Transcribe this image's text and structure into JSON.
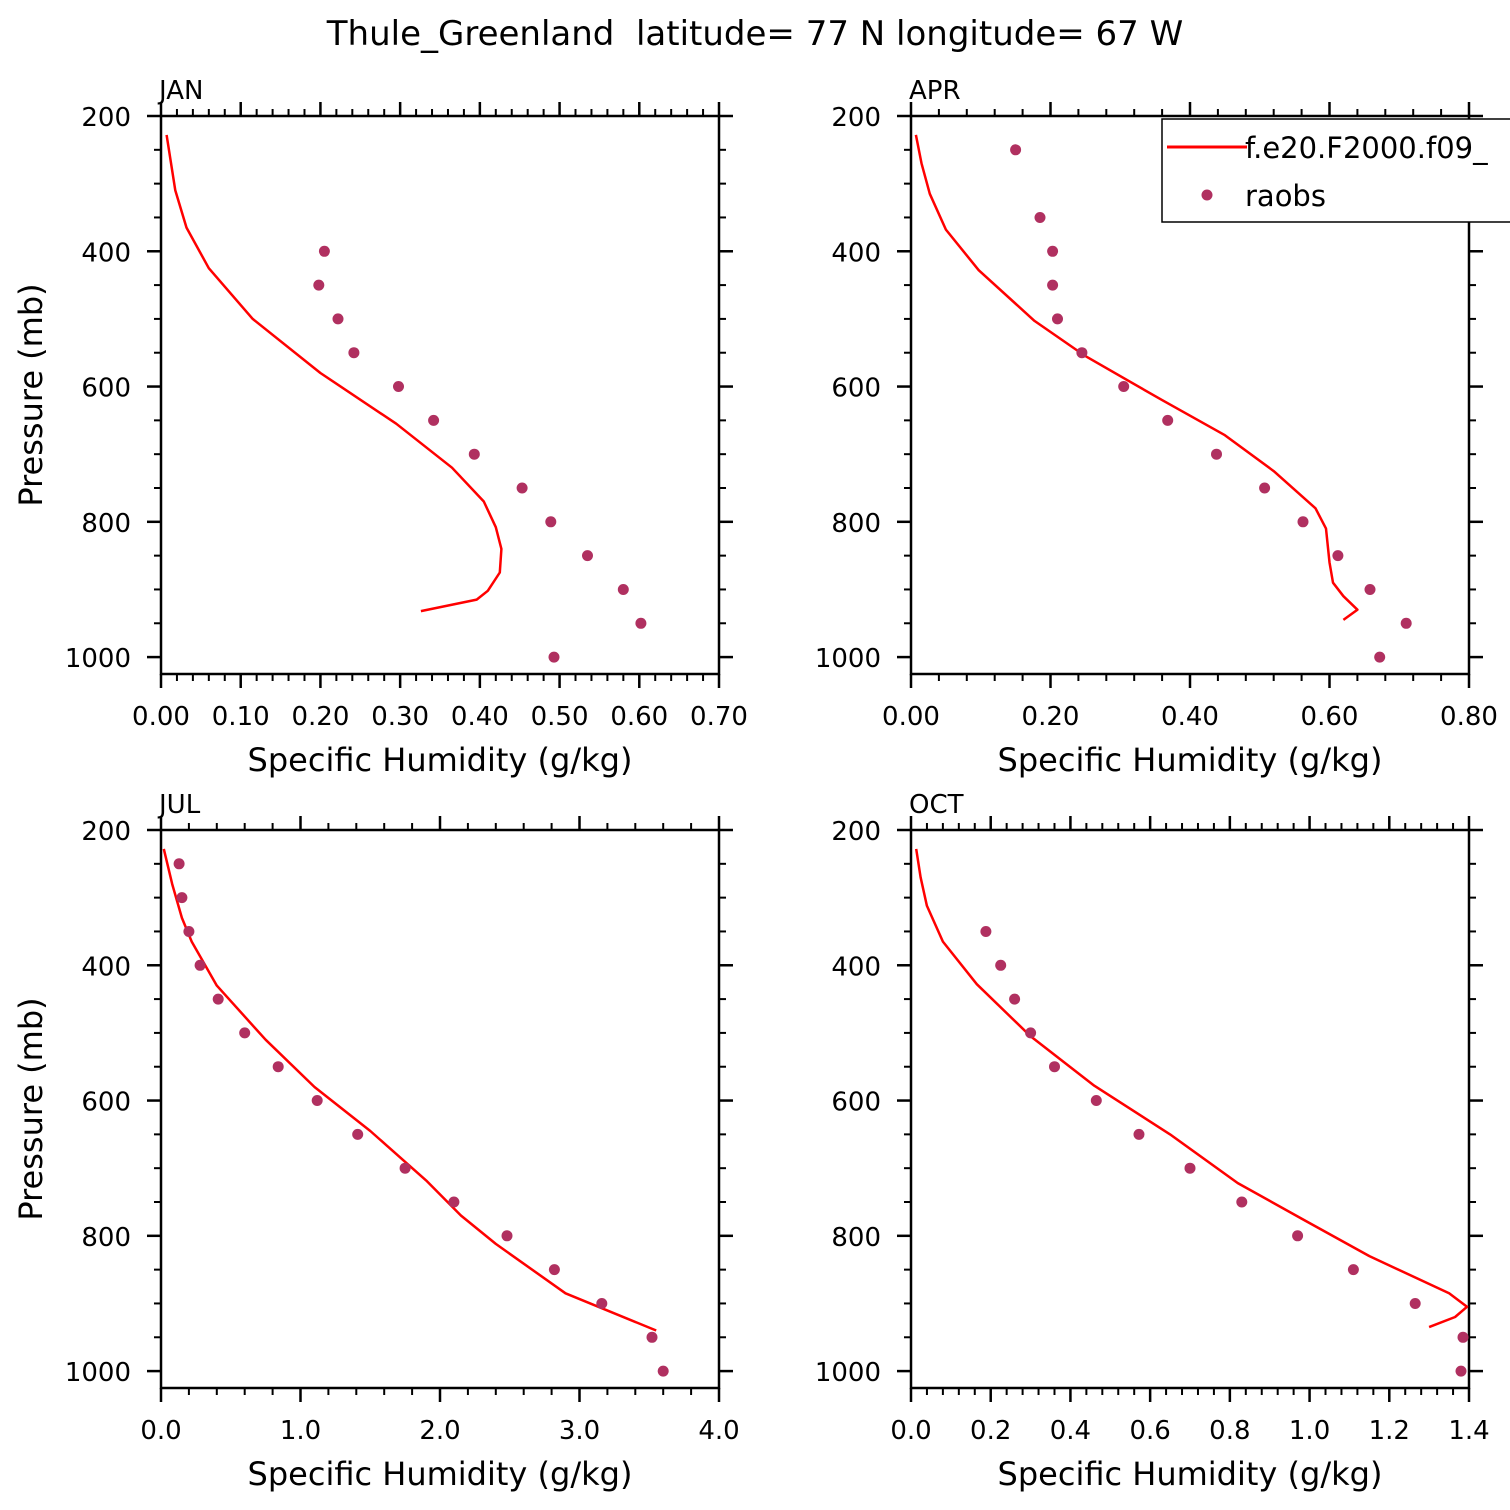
{
  "figure_title": "Thule_Greenland  latitude= 77 N longitude= 67 W",
  "colors": {
    "model": "#ff0000",
    "obs": "#b03060",
    "axis": "#000000"
  },
  "legend": {
    "model_label": "f.e20.F2000.f09_",
    "obs_label": "raobs"
  },
  "chart_data": [
    {
      "type": "line",
      "panel": "JAN",
      "xlabel": "Specific Humidity (g/kg)",
      "ylabel": "Pressure (mb)",
      "xlim": [
        0,
        0.7
      ],
      "ylim": [
        200,
        1025
      ],
      "y_inverted": true,
      "xticks": [
        0,
        0.1,
        0.2,
        0.3,
        0.4,
        0.5,
        0.6,
        0.7
      ],
      "xtick_labels": [
        "0.00",
        "0.10",
        "0.20",
        "0.30",
        "0.40",
        "0.50",
        "0.60",
        "0.70"
      ],
      "yticks": [
        200,
        400,
        600,
        800,
        1000
      ],
      "ytick_labels": [
        "200",
        "400",
        "600",
        "800",
        "1000"
      ],
      "series": [
        {
          "name": "f.e20.F2000.f09_",
          "kind": "line",
          "points": [
            [
              0.007,
              228
            ],
            [
              0.018,
              310
            ],
            [
              0.032,
              365
            ],
            [
              0.06,
              425
            ],
            [
              0.115,
              500
            ],
            [
              0.2,
              580
            ],
            [
              0.295,
              655
            ],
            [
              0.365,
              720
            ],
            [
              0.405,
              770
            ],
            [
              0.42,
              808
            ],
            [
              0.427,
              840
            ],
            [
              0.425,
              875
            ],
            [
              0.41,
              902
            ],
            [
              0.396,
              915
            ],
            [
              0.326,
              932
            ]
          ]
        },
        {
          "name": "raobs",
          "kind": "scatter",
          "points": [
            [
              0.205,
              400
            ],
            [
              0.198,
              450
            ],
            [
              0.222,
              500
            ],
            [
              0.242,
              550
            ],
            [
              0.298,
              600
            ],
            [
              0.342,
              650
            ],
            [
              0.393,
              700
            ],
            [
              0.453,
              750
            ],
            [
              0.489,
              800
            ],
            [
              0.535,
              850
            ],
            [
              0.58,
              900
            ],
            [
              0.602,
              950
            ],
            [
              0.493,
              1000
            ]
          ]
        }
      ]
    },
    {
      "type": "line",
      "panel": "APR",
      "xlabel": "Specific Humidity (g/kg)",
      "ylabel": "",
      "xlim": [
        0,
        0.8
      ],
      "ylim": [
        200,
        1025
      ],
      "y_inverted": true,
      "xticks": [
        0,
        0.2,
        0.4,
        0.6,
        0.8
      ],
      "xtick_labels": [
        "0.00",
        "0.20",
        "0.40",
        "0.60",
        "0.80"
      ],
      "yticks": [
        200,
        400,
        600,
        800,
        1000
      ],
      "ytick_labels": [
        "200",
        "400",
        "600",
        "800",
        "1000"
      ],
      "series": [
        {
          "name": "f.e20.F2000.f09_",
          "kind": "line",
          "points": [
            [
              0.007,
              228
            ],
            [
              0.015,
              270
            ],
            [
              0.027,
              315
            ],
            [
              0.05,
              368
            ],
            [
              0.097,
              428
            ],
            [
              0.177,
              503
            ],
            [
              0.25,
              555
            ],
            [
              0.36,
              620
            ],
            [
              0.45,
              672
            ],
            [
              0.52,
              725
            ],
            [
              0.58,
              780
            ],
            [
              0.595,
              810
            ],
            [
              0.6,
              860
            ],
            [
              0.605,
              890
            ],
            [
              0.62,
              910
            ],
            [
              0.64,
              930
            ],
            [
              0.62,
              945
            ]
          ]
        },
        {
          "name": "raobs",
          "kind": "scatter",
          "points": [
            [
              0.15,
              250
            ],
            [
              0.185,
              350
            ],
            [
              0.203,
              400
            ],
            [
              0.203,
              450
            ],
            [
              0.21,
              500
            ],
            [
              0.245,
              550
            ],
            [
              0.305,
              600
            ],
            [
              0.368,
              650
            ],
            [
              0.438,
              700
            ],
            [
              0.507,
              750
            ],
            [
              0.562,
              800
            ],
            [
              0.612,
              850
            ],
            [
              0.658,
              900
            ],
            [
              0.71,
              950
            ],
            [
              0.672,
              1000
            ]
          ]
        }
      ]
    },
    {
      "type": "line",
      "panel": "JUL",
      "xlabel": "Specific Humidity (g/kg)",
      "ylabel": "Pressure (mb)",
      "xlim": [
        0,
        4
      ],
      "ylim": [
        200,
        1025
      ],
      "y_inverted": true,
      "xticks": [
        0,
        1,
        2,
        3,
        4
      ],
      "xtick_labels": [
        "0.0",
        "1.0",
        "2.0",
        "3.0",
        "4.0"
      ],
      "yticks": [
        200,
        400,
        600,
        800,
        1000
      ],
      "ytick_labels": [
        "200",
        "400",
        "600",
        "800",
        "1000"
      ],
      "series": [
        {
          "name": "f.e20.F2000.f09_",
          "kind": "line",
          "points": [
            [
              0.02,
              228
            ],
            [
              0.08,
              280
            ],
            [
              0.15,
              330
            ],
            [
              0.22,
              365
            ],
            [
              0.4,
              430
            ],
            [
              0.75,
              510
            ],
            [
              1.1,
              580
            ],
            [
              1.5,
              645
            ],
            [
              1.9,
              718
            ],
            [
              2.15,
              770
            ],
            [
              2.4,
              812
            ],
            [
              2.9,
              885
            ],
            [
              3.55,
              940
            ]
          ]
        },
        {
          "name": "raobs",
          "kind": "scatter",
          "points": [
            [
              0.13,
              250
            ],
            [
              0.15,
              300
            ],
            [
              0.2,
              350
            ],
            [
              0.28,
              400
            ],
            [
              0.41,
              450
            ],
            [
              0.6,
              500
            ],
            [
              0.84,
              550
            ],
            [
              1.12,
              600
            ],
            [
              1.41,
              650
            ],
            [
              1.75,
              700
            ],
            [
              2.1,
              750
            ],
            [
              2.48,
              800
            ],
            [
              2.82,
              850
            ],
            [
              3.16,
              900
            ],
            [
              3.52,
              950
            ],
            [
              3.6,
              1000
            ]
          ]
        }
      ]
    },
    {
      "type": "line",
      "panel": "OCT",
      "xlabel": "Specific Humidity (g/kg)",
      "ylabel": "",
      "xlim": [
        0,
        1.4
      ],
      "ylim": [
        200,
        1025
      ],
      "y_inverted": true,
      "xticks": [
        0,
        0.2,
        0.4,
        0.6,
        0.8,
        1.0,
        1.2,
        1.4
      ],
      "xtick_labels": [
        "0.0",
        "0.2",
        "0.4",
        "0.6",
        "0.8",
        "1.0",
        "1.2",
        "1.4"
      ],
      "yticks": [
        200,
        400,
        600,
        800,
        1000
      ],
      "ytick_labels": [
        "200",
        "400",
        "600",
        "800",
        "1000"
      ],
      "series": [
        {
          "name": "f.e20.F2000.f09_",
          "kind": "line",
          "points": [
            [
              0.013,
              228
            ],
            [
              0.024,
              270
            ],
            [
              0.04,
              312
            ],
            [
              0.08,
              365
            ],
            [
              0.165,
              428
            ],
            [
              0.3,
              505
            ],
            [
              0.46,
              578
            ],
            [
              0.65,
              650
            ],
            [
              0.82,
              722
            ],
            [
              0.99,
              778
            ],
            [
              1.15,
              830
            ],
            [
              1.35,
              885
            ],
            [
              1.395,
              905
            ],
            [
              1.365,
              920
            ],
            [
              1.3,
              935
            ]
          ]
        },
        {
          "name": "raobs",
          "kind": "scatter",
          "points": [
            [
              0.188,
              350
            ],
            [
              0.225,
              400
            ],
            [
              0.26,
              450
            ],
            [
              0.3,
              500
            ],
            [
              0.36,
              550
            ],
            [
              0.465,
              600
            ],
            [
              0.572,
              650
            ],
            [
              0.7,
              700
            ],
            [
              0.83,
              750
            ],
            [
              0.97,
              800
            ],
            [
              1.11,
              850
            ],
            [
              1.265,
              900
            ],
            [
              1.385,
              950
            ],
            [
              1.38,
              1000
            ]
          ]
        }
      ]
    }
  ]
}
